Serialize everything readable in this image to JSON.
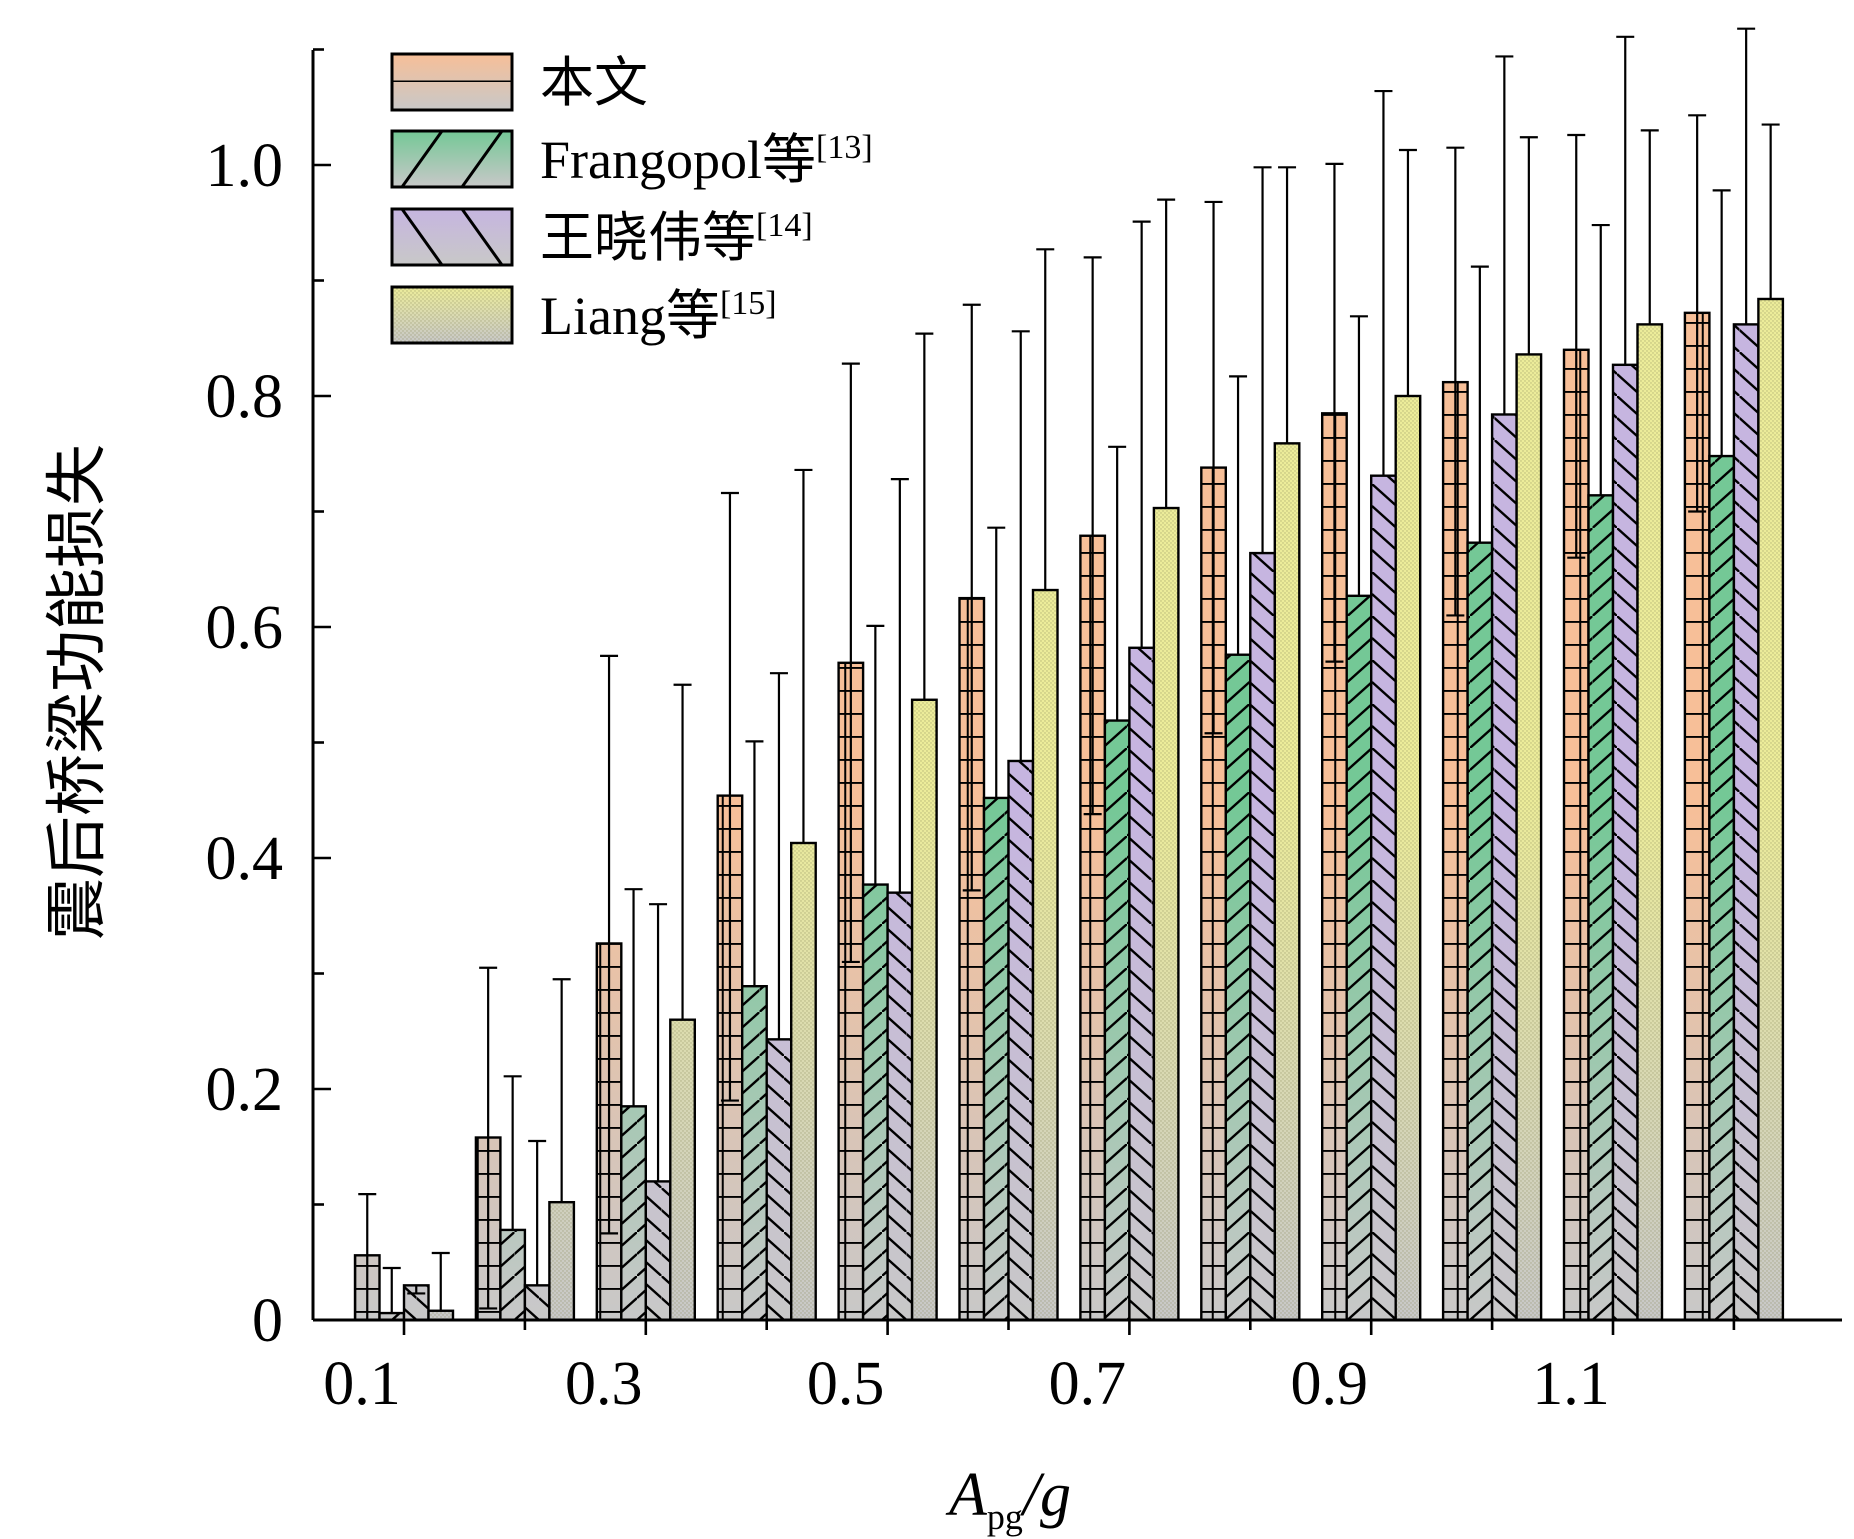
{
  "chart_data": {
    "type": "bar",
    "xlabel": "A_pg/g",
    "xlabel_main": "A",
    "xlabel_sub": "pg",
    "xlabel_tail": "/g",
    "ylabel": "震后桥梁功能损失",
    "ylim": [
      0,
      1.1
    ],
    "yticks": [
      "0",
      "0.2",
      "0.4",
      "0.6",
      "0.8",
      "1.0"
    ],
    "categories": [
      "0.1",
      "0.2",
      "0.3",
      "0.4",
      "0.5",
      "0.6",
      "0.7",
      "0.8",
      "0.9",
      "1.0",
      "1.1",
      "1.2"
    ],
    "xtick_labels": [
      "0.1",
      "0.3",
      "0.5",
      "0.7",
      "0.9",
      "1.1"
    ],
    "legend_position": "top-left",
    "grid": false,
    "series": [
      {
        "name": "本文",
        "label_main": "本文",
        "label_ref": "",
        "colors": [
          "#f7bf98",
          "#c8c8c8"
        ],
        "pattern": "grid-bricks",
        "values": [
          0.056,
          0.158,
          0.326,
          0.454,
          0.569,
          0.625,
          0.679,
          0.738,
          0.785,
          0.812,
          0.84,
          0.872
        ],
        "error_upper": [
          0.109,
          0.305,
          0.575,
          0.716,
          0.828,
          0.879,
          0.92,
          0.968,
          1.001,
          1.015,
          1.026,
          1.043
        ],
        "error_lower": [
          0.0,
          0.01,
          0.075,
          0.19,
          0.31,
          0.372,
          0.438,
          0.508,
          0.57,
          0.61,
          0.66,
          0.7
        ]
      },
      {
        "name": "Frangopol等[13]",
        "label_main": "Frangopol等",
        "label_ref": "[13]",
        "colors": [
          "#74c896",
          "#c8c8c8"
        ],
        "pattern": "forward-diagonal",
        "values": [
          0.006,
          0.078,
          0.185,
          0.289,
          0.377,
          0.452,
          0.519,
          0.576,
          0.627,
          0.673,
          0.714,
          0.748
        ],
        "error_upper": [
          0.045,
          0.211,
          0.373,
          0.501,
          0.601,
          0.686,
          0.756,
          0.817,
          0.869,
          0.912,
          0.948,
          0.978
        ]
      },
      {
        "name": "王晓伟等[14]",
        "label_main": "王晓伟等",
        "label_ref": "[14]",
        "colors": [
          "#c6b5e0",
          "#c8c8c8"
        ],
        "pattern": "back-diagonal",
        "values": [
          0.03,
          0.03,
          0.12,
          0.243,
          0.37,
          0.484,
          0.582,
          0.664,
          0.731,
          0.784,
          0.827,
          0.862
        ],
        "error_upper": [
          0.023,
          0.155,
          0.36,
          0.56,
          0.728,
          0.856,
          0.951,
          0.998,
          1.064,
          1.094,
          1.111,
          1.118
        ]
      },
      {
        "name": "Liang等[15]",
        "label_main": "Liang等",
        "label_ref": "[15]",
        "colors": [
          "#ecec9a",
          "#c8c8c8"
        ],
        "pattern": "fine-dots",
        "values": [
          0.008,
          0.102,
          0.26,
          0.413,
          0.537,
          0.632,
          0.703,
          0.759,
          0.8,
          0.836,
          0.862,
          0.884
        ],
        "error_upper": [
          0.058,
          0.295,
          0.55,
          0.736,
          0.854,
          0.927,
          0.97,
          0.998,
          1.013,
          1.024,
          1.03,
          1.035
        ]
      }
    ]
  }
}
